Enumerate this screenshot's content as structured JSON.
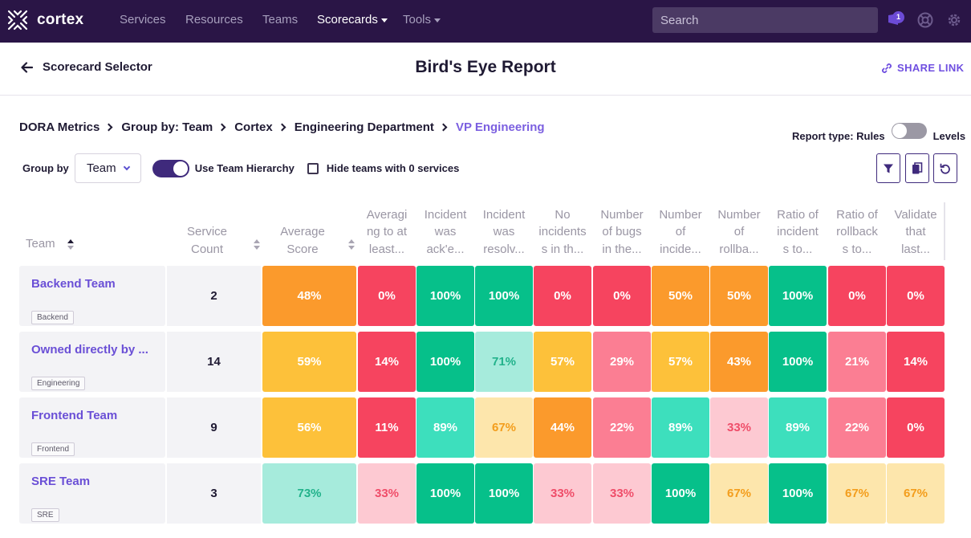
{
  "app": {
    "name": "cortex"
  },
  "nav": {
    "items": [
      {
        "label": "Services"
      },
      {
        "label": "Resources"
      },
      {
        "label": "Teams"
      },
      {
        "label": "Scorecards"
      },
      {
        "label": "Tools"
      }
    ],
    "search_placeholder": "Search",
    "notification_count": "1"
  },
  "header": {
    "back_label": "Scorecard Selector",
    "title": "Bird's Eye Report",
    "share_label": "SHARE LINK"
  },
  "breadcrumb": [
    "DORA Metrics",
    "Group by: Team",
    "Cortex",
    "Engineering Department",
    "VP Engineering"
  ],
  "report_type": {
    "label": "Report type: Rules",
    "alt": "Levels"
  },
  "controls": {
    "group_by_label": "Group by",
    "group_by_value": "Team",
    "hierarchy_label": "Use Team Hierarchy",
    "hide_label": "Hide teams with 0 services"
  },
  "table": {
    "headers": {
      "team": "Team",
      "count": [
        "Service",
        "Count"
      ],
      "avg": [
        "Average",
        "Score"
      ],
      "rules": [
        [
          "Averagi",
          "ng to at",
          "least..."
        ],
        [
          "Incident",
          "was",
          "ack'e..."
        ],
        [
          "Incident",
          "was",
          "resolv..."
        ],
        [
          "No",
          "incidents",
          "s in th..."
        ],
        [
          "Number",
          "of bugs",
          "in the..."
        ],
        [
          "Number",
          "of",
          "incide..."
        ],
        [
          "Number",
          "of",
          "rollba..."
        ],
        [
          "Ratio of",
          "incident",
          "s to..."
        ],
        [
          "Ratio of",
          "rollback",
          "s to..."
        ],
        [
          "Validate",
          "that",
          "last..."
        ]
      ]
    },
    "rows": [
      {
        "team": "Backend Team",
        "tag": "Backend",
        "count": "2",
        "avg": {
          "v": "48%",
          "c": "orange"
        },
        "cells": [
          {
            "v": "0%",
            "c": "red"
          },
          {
            "v": "100%",
            "c": "green"
          },
          {
            "v": "100%",
            "c": "green"
          },
          {
            "v": "0%",
            "c": "red"
          },
          {
            "v": "0%",
            "c": "red"
          },
          {
            "v": "50%",
            "c": "orange"
          },
          {
            "v": "50%",
            "c": "orange"
          },
          {
            "v": "100%",
            "c": "green"
          },
          {
            "v": "0%",
            "c": "red"
          },
          {
            "v": "0%",
            "c": "red"
          }
        ]
      },
      {
        "team": "Owned directly by ...",
        "tag": "Engineering",
        "count": "14",
        "avg": {
          "v": "59%",
          "c": "yellow"
        },
        "cells": [
          {
            "v": "14%",
            "c": "red"
          },
          {
            "v": "100%",
            "c": "green"
          },
          {
            "v": "71%",
            "c": "mint"
          },
          {
            "v": "57%",
            "c": "yellow"
          },
          {
            "v": "29%",
            "c": "salmon"
          },
          {
            "v": "57%",
            "c": "yellow"
          },
          {
            "v": "43%",
            "c": "orange"
          },
          {
            "v": "100%",
            "c": "green"
          },
          {
            "v": "21%",
            "c": "salmon"
          },
          {
            "v": "14%",
            "c": "red"
          }
        ]
      },
      {
        "team": "Frontend Team",
        "tag": "Frontend",
        "count": "9",
        "avg": {
          "v": "56%",
          "c": "yellow"
        },
        "cells": [
          {
            "v": "11%",
            "c": "red"
          },
          {
            "v": "89%",
            "c": "teal"
          },
          {
            "v": "67%",
            "c": "cream"
          },
          {
            "v": "44%",
            "c": "orange"
          },
          {
            "v": "22%",
            "c": "salmon"
          },
          {
            "v": "89%",
            "c": "teal"
          },
          {
            "v": "33%",
            "c": "pink"
          },
          {
            "v": "89%",
            "c": "teal"
          },
          {
            "v": "22%",
            "c": "salmon"
          },
          {
            "v": "0%",
            "c": "red"
          }
        ]
      },
      {
        "team": "SRE Team",
        "tag": "SRE",
        "count": "3",
        "avg": {
          "v": "73%",
          "c": "mint"
        },
        "cells": [
          {
            "v": "33%",
            "c": "pink"
          },
          {
            "v": "100%",
            "c": "green"
          },
          {
            "v": "100%",
            "c": "green"
          },
          {
            "v": "33%",
            "c": "pink"
          },
          {
            "v": "33%",
            "c": "pink"
          },
          {
            "v": "100%",
            "c": "green"
          },
          {
            "v": "67%",
            "c": "cream"
          },
          {
            "v": "100%",
            "c": "green"
          },
          {
            "v": "67%",
            "c": "cream"
          },
          {
            "v": "67%",
            "c": "cream"
          }
        ]
      }
    ]
  }
}
